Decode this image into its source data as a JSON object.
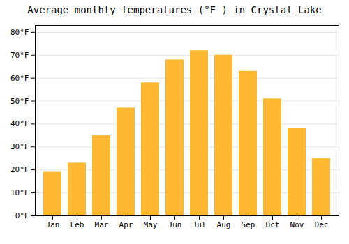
{
  "chart_data": {
    "type": "bar",
    "title": "Average monthly temperatures (°F ) in Crystal Lake",
    "categories": [
      "Jan",
      "Feb",
      "Mar",
      "Apr",
      "May",
      "Jun",
      "Jul",
      "Aug",
      "Sep",
      "Oct",
      "Nov",
      "Dec"
    ],
    "values": [
      19,
      23,
      35,
      47,
      58,
      68,
      72,
      70,
      63,
      51,
      38,
      25
    ],
    "color": "#FFB833",
    "ylim": [
      0,
      83
    ],
    "yticks": [
      {
        "value": 0,
        "label": "0°F"
      },
      {
        "value": 10,
        "label": "10°F"
      },
      {
        "value": 20,
        "label": "20°F"
      },
      {
        "value": 30,
        "label": "30°F"
      },
      {
        "value": 40,
        "label": "40°F"
      },
      {
        "value": 50,
        "label": "50°F"
      },
      {
        "value": 60,
        "label": "60°F"
      },
      {
        "value": 70,
        "label": "70°F"
      },
      {
        "value": 80,
        "label": "80°F"
      }
    ],
    "grid": true
  }
}
